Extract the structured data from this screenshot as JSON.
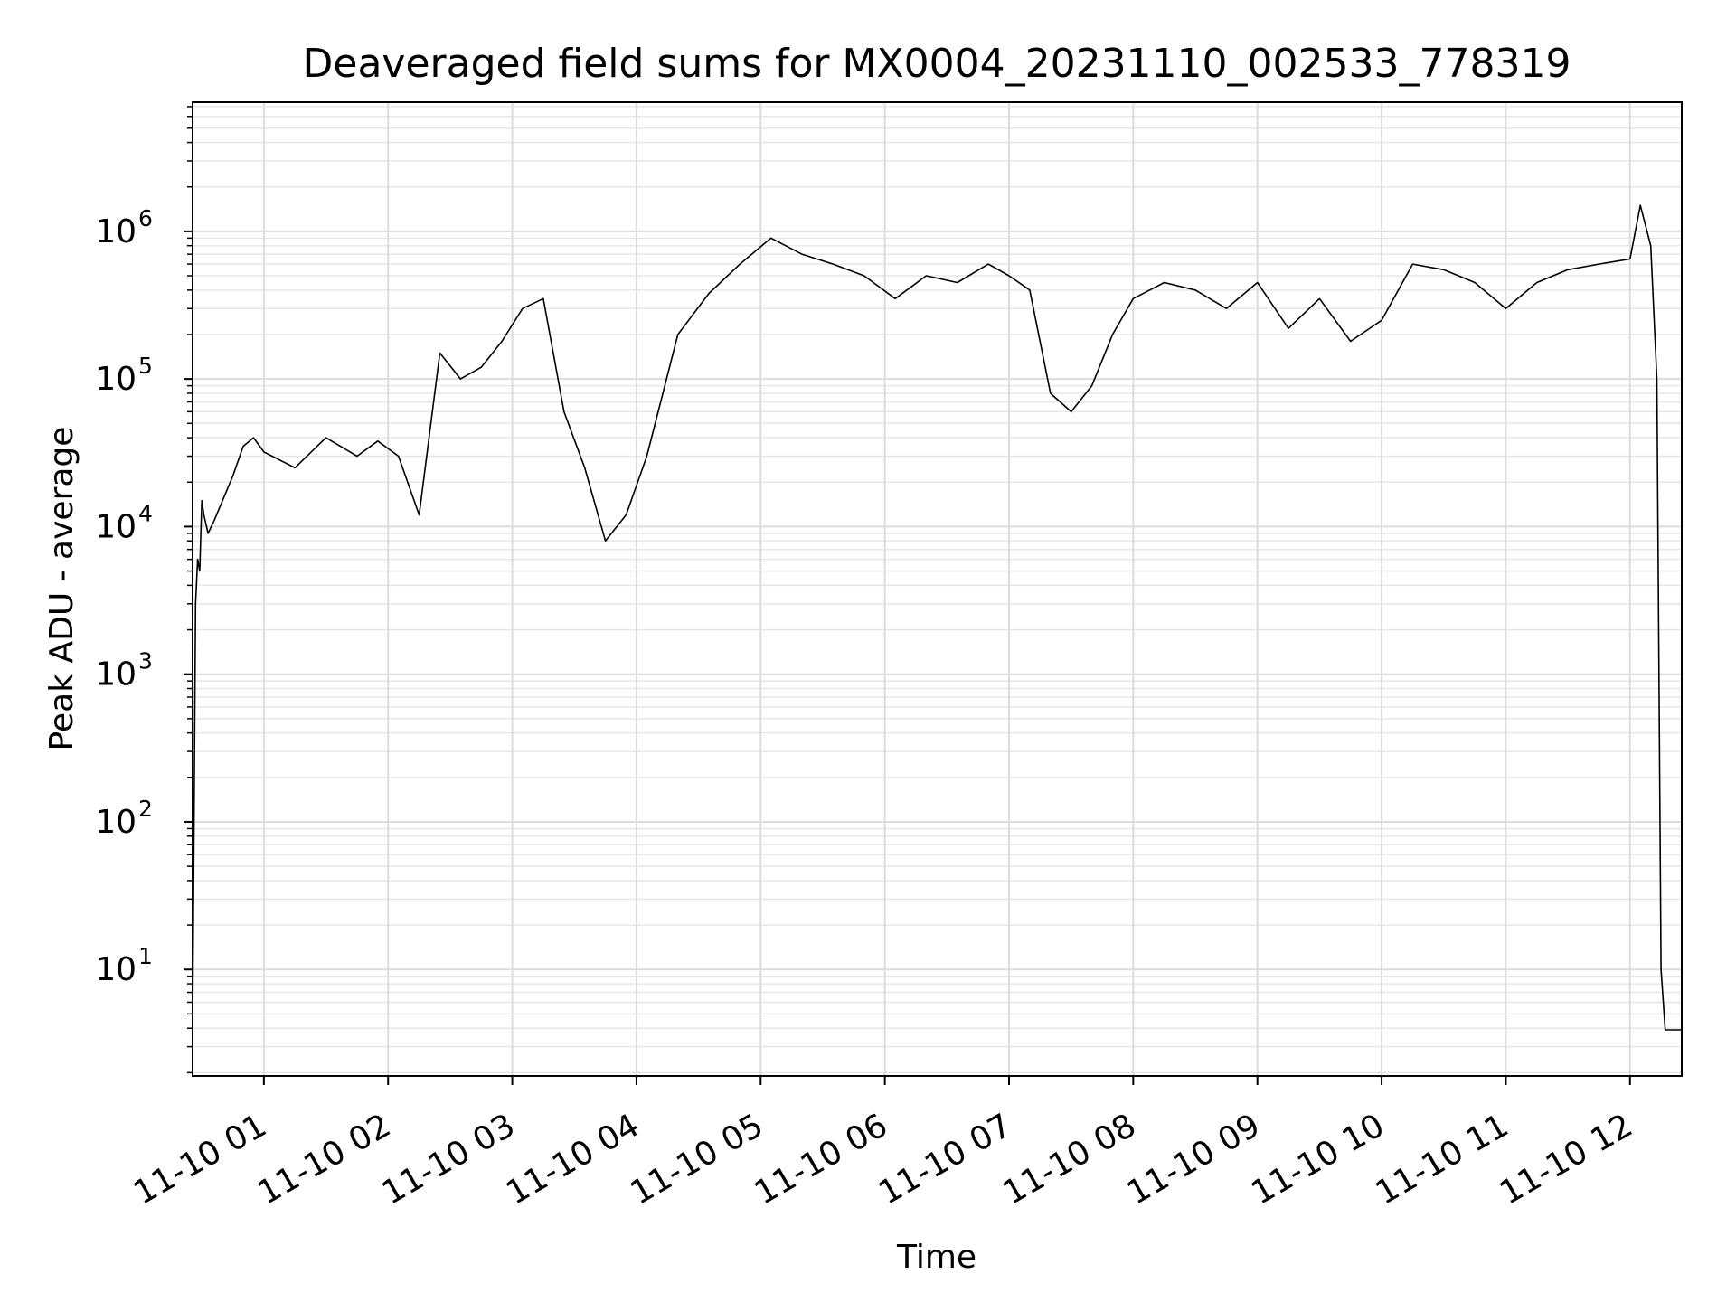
{
  "chart_data": {
    "type": "line",
    "title": "Deaveraged field sums for MX0004_20231110_002533_778319",
    "xlabel": "Time",
    "ylabel": "Peak ADU - average",
    "yscale": "log",
    "ylim": [
      1.9,
      7500000
    ],
    "xlim": [
      "2023-11-10T00:25:33",
      "2023-11-10T12:25:00"
    ],
    "grid": "both major and minor, light gray",
    "line_color": "#000000",
    "x_ticks": [
      {
        "value": "2023-11-10T01:00",
        "label": "11-10 01"
      },
      {
        "value": "2023-11-10T02:00",
        "label": "11-10 02"
      },
      {
        "value": "2023-11-10T03:00",
        "label": "11-10 03"
      },
      {
        "value": "2023-11-10T04:00",
        "label": "11-10 04"
      },
      {
        "value": "2023-11-10T05:00",
        "label": "11-10 05"
      },
      {
        "value": "2023-11-10T06:00",
        "label": "11-10 06"
      },
      {
        "value": "2023-11-10T07:00",
        "label": "11-10 07"
      },
      {
        "value": "2023-11-10T08:00",
        "label": "11-10 08"
      },
      {
        "value": "2023-11-10T09:00",
        "label": "11-10 09"
      },
      {
        "value": "2023-11-10T10:00",
        "label": "11-10 10"
      },
      {
        "value": "2023-11-10T11:00",
        "label": "11-10 11"
      },
      {
        "value": "2023-11-10T12:00",
        "label": "11-10 12"
      }
    ],
    "y_ticks": [
      {
        "value": 10,
        "base": "10",
        "exp": "1"
      },
      {
        "value": 100,
        "base": "10",
        "exp": "2"
      },
      {
        "value": 1000,
        "base": "10",
        "exp": "3"
      },
      {
        "value": 10000,
        "base": "10",
        "exp": "4"
      },
      {
        "value": 100000,
        "base": "10",
        "exp": "5"
      },
      {
        "value": 1000000,
        "base": "10",
        "exp": "6"
      }
    ],
    "series": [
      {
        "x": [
          "2023-11-10T00:25:33",
          "2023-11-10T00:27",
          "2023-11-10T00:28",
          "2023-11-10T00:29",
          "2023-11-10T00:30",
          "2023-11-10T00:31",
          "2023-11-10T00:33",
          "2023-11-10T00:36",
          "2023-11-10T00:40",
          "2023-11-10T00:45",
          "2023-11-10T00:50",
          "2023-11-10T00:55",
          "2023-11-10T01:00",
          "2023-11-10T01:15",
          "2023-11-10T01:30",
          "2023-11-10T01:45",
          "2023-11-10T01:55",
          "2023-11-10T02:05",
          "2023-11-10T02:15",
          "2023-11-10T02:25",
          "2023-11-10T02:35",
          "2023-11-10T02:45",
          "2023-11-10T02:55",
          "2023-11-10T03:05",
          "2023-11-10T03:15",
          "2023-11-10T03:25",
          "2023-11-10T03:35",
          "2023-11-10T03:45",
          "2023-11-10T03:55",
          "2023-11-10T04:05",
          "2023-11-10T04:20",
          "2023-11-10T04:35",
          "2023-11-10T04:50",
          "2023-11-10T05:05",
          "2023-11-10T05:20",
          "2023-11-10T05:35",
          "2023-11-10T05:50",
          "2023-11-10T06:05",
          "2023-11-10T06:20",
          "2023-11-10T06:35",
          "2023-11-10T06:50",
          "2023-11-10T07:00",
          "2023-11-10T07:10",
          "2023-11-10T07:20",
          "2023-11-10T07:30",
          "2023-11-10T07:40",
          "2023-11-10T07:50",
          "2023-11-10T08:00",
          "2023-11-10T08:15",
          "2023-11-10T08:30",
          "2023-11-10T08:45",
          "2023-11-10T09:00",
          "2023-11-10T09:15",
          "2023-11-10T09:30",
          "2023-11-10T09:45",
          "2023-11-10T10:00",
          "2023-11-10T10:15",
          "2023-11-10T10:30",
          "2023-11-10T10:45",
          "2023-11-10T11:00",
          "2023-11-10T11:15",
          "2023-11-10T11:30",
          "2023-11-10T11:45",
          "2023-11-10T12:00",
          "2023-11-10T12:05",
          "2023-11-10T12:10",
          "2023-11-10T12:13",
          "2023-11-10T12:15",
          "2023-11-10T12:17",
          "2023-11-10T12:25"
        ],
        "y": [
          3.9,
          3000,
          6000,
          5000,
          15000,
          12000,
          9000,
          11000,
          15000,
          22000,
          35000,
          40000,
          32000,
          25000,
          40000,
          30000,
          38000,
          30000,
          12000,
          150000,
          100000,
          120000,
          180000,
          300000,
          350000,
          60000,
          25000,
          8000,
          12000,
          30000,
          200000,
          380000,
          600000,
          900000,
          700000,
          600000,
          500000,
          350000,
          500000,
          450000,
          600000,
          500000,
          400000,
          80000,
          60000,
          90000,
          200000,
          350000,
          450000,
          400000,
          300000,
          450000,
          220000,
          350000,
          180000,
          250000,
          600000,
          550000,
          450000,
          300000,
          450000,
          550000,
          600000,
          650000,
          1500000,
          800000,
          100000,
          10,
          3.9,
          3.9
        ]
      }
    ]
  }
}
